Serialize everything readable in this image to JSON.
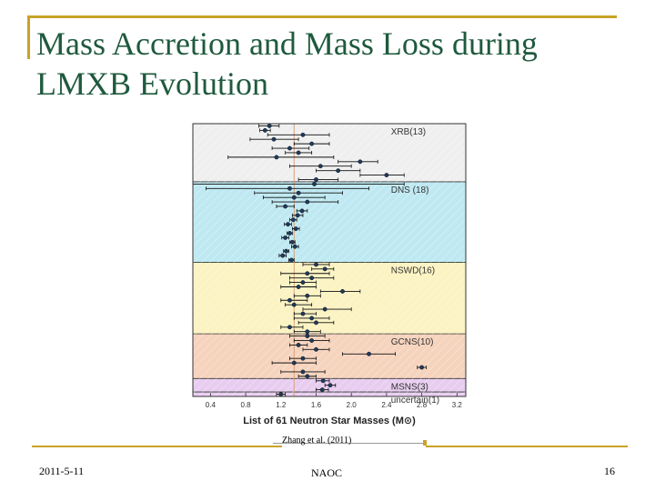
{
  "slide": {
    "title": "Mass Accretion and Mass Loss during LMXB Evolution",
    "caption": "Zhang et al. (2011)",
    "footer_date": "2011-5-11",
    "footer_org": "NAOC",
    "page_number": "16"
  },
  "colors": {
    "title": "#1f5a3e",
    "accent": "#c9a227"
  },
  "chart_data": {
    "type": "scatter",
    "xlabel": "List of 61 Neutron Star Masses (M⊙)",
    "xlim": [
      0.2,
      3.3
    ],
    "xticks": [
      0.4,
      0.8,
      1.2,
      1.6,
      2.0,
      2.4,
      2.8,
      3.2
    ],
    "xticklabels": [
      "0.4",
      "0.8",
      "1.2",
      "1.6",
      "2.0",
      "2.4",
      "2.8",
      "3.2"
    ],
    "reference_line_x": 1.35,
    "groups": [
      {
        "label": "XRB(13)",
        "color": "#efefef",
        "band": [
          0,
          13
        ],
        "points": [
          {
            "x": 1.07,
            "lo": 0.95,
            "hi": 1.18
          },
          {
            "x": 1.02,
            "lo": 0.96,
            "hi": 1.08
          },
          {
            "x": 1.45,
            "lo": 1.05,
            "hi": 1.75
          },
          {
            "x": 1.12,
            "lo": 0.85,
            "hi": 1.4
          },
          {
            "x": 1.55,
            "lo": 1.35,
            "hi": 1.75
          },
          {
            "x": 1.3,
            "lo": 1.1,
            "hi": 1.52
          },
          {
            "x": 1.4,
            "lo": 1.25,
            "hi": 1.55
          },
          {
            "x": 1.15,
            "lo": 0.6,
            "hi": 1.8
          },
          {
            "x": 2.1,
            "lo": 1.85,
            "hi": 2.3
          },
          {
            "x": 1.65,
            "lo": 1.3,
            "hi": 2.0
          },
          {
            "x": 1.85,
            "lo": 1.6,
            "hi": 2.1
          },
          {
            "x": 2.4,
            "lo": 2.1,
            "hi": 2.6
          },
          {
            "x": 1.6,
            "lo": 1.4,
            "hi": 1.85
          }
        ]
      },
      {
        "label": "DNS (18)",
        "color": "#bfe9f2",
        "band": [
          13,
          31
        ],
        "points": [
          {
            "x": 1.58,
            "lo": 0.2,
            "hi": 2.6
          },
          {
            "x": 1.3,
            "lo": 0.35,
            "hi": 2.2
          },
          {
            "x": 1.4,
            "lo": 0.9,
            "hi": 1.9
          },
          {
            "x": 1.35,
            "lo": 1.0,
            "hi": 1.7
          },
          {
            "x": 1.5,
            "lo": 1.1,
            "hi": 1.85
          },
          {
            "x": 1.25,
            "lo": 1.15,
            "hi": 1.35
          },
          {
            "x": 1.44,
            "lo": 1.38,
            "hi": 1.5
          },
          {
            "x": 1.39,
            "lo": 1.33,
            "hi": 1.45
          },
          {
            "x": 1.34,
            "lo": 1.3,
            "hi": 1.38
          },
          {
            "x": 1.28,
            "lo": 1.24,
            "hi": 1.32
          },
          {
            "x": 1.37,
            "lo": 1.33,
            "hi": 1.41
          },
          {
            "x": 1.3,
            "lo": 1.27,
            "hi": 1.33
          },
          {
            "x": 1.25,
            "lo": 1.21,
            "hi": 1.29
          },
          {
            "x": 1.33,
            "lo": 1.3,
            "hi": 1.36
          },
          {
            "x": 1.36,
            "lo": 1.32,
            "hi": 1.4
          },
          {
            "x": 1.26,
            "lo": 1.23,
            "hi": 1.29
          },
          {
            "x": 1.22,
            "lo": 1.18,
            "hi": 1.26
          },
          {
            "x": 1.32,
            "lo": 1.29,
            "hi": 1.35
          }
        ]
      },
      {
        "label": "NSWD(16)",
        "color": "#fbf3c2",
        "band": [
          31,
          47
        ],
        "points": [
          {
            "x": 1.6,
            "lo": 1.45,
            "hi": 1.75
          },
          {
            "x": 1.7,
            "lo": 1.55,
            "hi": 1.8
          },
          {
            "x": 1.5,
            "lo": 1.2,
            "hi": 1.75
          },
          {
            "x": 1.55,
            "lo": 1.3,
            "hi": 1.8
          },
          {
            "x": 1.45,
            "lo": 1.3,
            "hi": 1.6
          },
          {
            "x": 1.4,
            "lo": 1.2,
            "hi": 1.6
          },
          {
            "x": 1.9,
            "lo": 1.65,
            "hi": 2.1
          },
          {
            "x": 1.5,
            "lo": 1.35,
            "hi": 1.65
          },
          {
            "x": 1.3,
            "lo": 1.2,
            "hi": 1.5
          },
          {
            "x": 1.35,
            "lo": 1.25,
            "hi": 1.55
          },
          {
            "x": 1.7,
            "lo": 1.45,
            "hi": 2.0
          },
          {
            "x": 1.45,
            "lo": 1.35,
            "hi": 1.6
          },
          {
            "x": 1.55,
            "lo": 1.35,
            "hi": 1.75
          },
          {
            "x": 1.6,
            "lo": 1.4,
            "hi": 1.8
          },
          {
            "x": 1.3,
            "lo": 1.2,
            "hi": 1.45
          },
          {
            "x": 1.5,
            "lo": 1.35,
            "hi": 1.65
          }
        ]
      },
      {
        "label": "GCNS(10)",
        "color": "#f6d3bd",
        "band": [
          47,
          57
        ],
        "points": [
          {
            "x": 1.5,
            "lo": 1.3,
            "hi": 1.7
          },
          {
            "x": 1.55,
            "lo": 1.35,
            "hi": 1.75
          },
          {
            "x": 1.4,
            "lo": 1.3,
            "hi": 1.5
          },
          {
            "x": 1.6,
            "lo": 1.45,
            "hi": 1.75
          },
          {
            "x": 2.2,
            "lo": 1.9,
            "hi": 2.5
          },
          {
            "x": 1.45,
            "lo": 1.3,
            "hi": 1.6
          },
          {
            "x": 1.35,
            "lo": 1.1,
            "hi": 1.6
          },
          {
            "x": 2.8,
            "lo": 2.75,
            "hi": 2.85
          },
          {
            "x": 1.45,
            "lo": 1.2,
            "hi": 1.7
          },
          {
            "x": 1.5,
            "lo": 1.4,
            "hi": 1.6
          }
        ]
      },
      {
        "label": "MSNS(3)",
        "color": "#e8cdf0",
        "band": [
          57,
          60
        ],
        "points": [
          {
            "x": 1.68,
            "lo": 1.6,
            "hi": 1.75
          },
          {
            "x": 1.76,
            "lo": 1.7,
            "hi": 1.82
          },
          {
            "x": 1.67,
            "lo": 1.6,
            "hi": 1.74
          }
        ]
      },
      {
        "label": "uncertain(1)",
        "color": "#e8cdf0",
        "band": [
          60,
          61
        ],
        "points": [
          {
            "x": 1.2,
            "lo": 1.15,
            "hi": 1.25
          }
        ]
      }
    ]
  }
}
